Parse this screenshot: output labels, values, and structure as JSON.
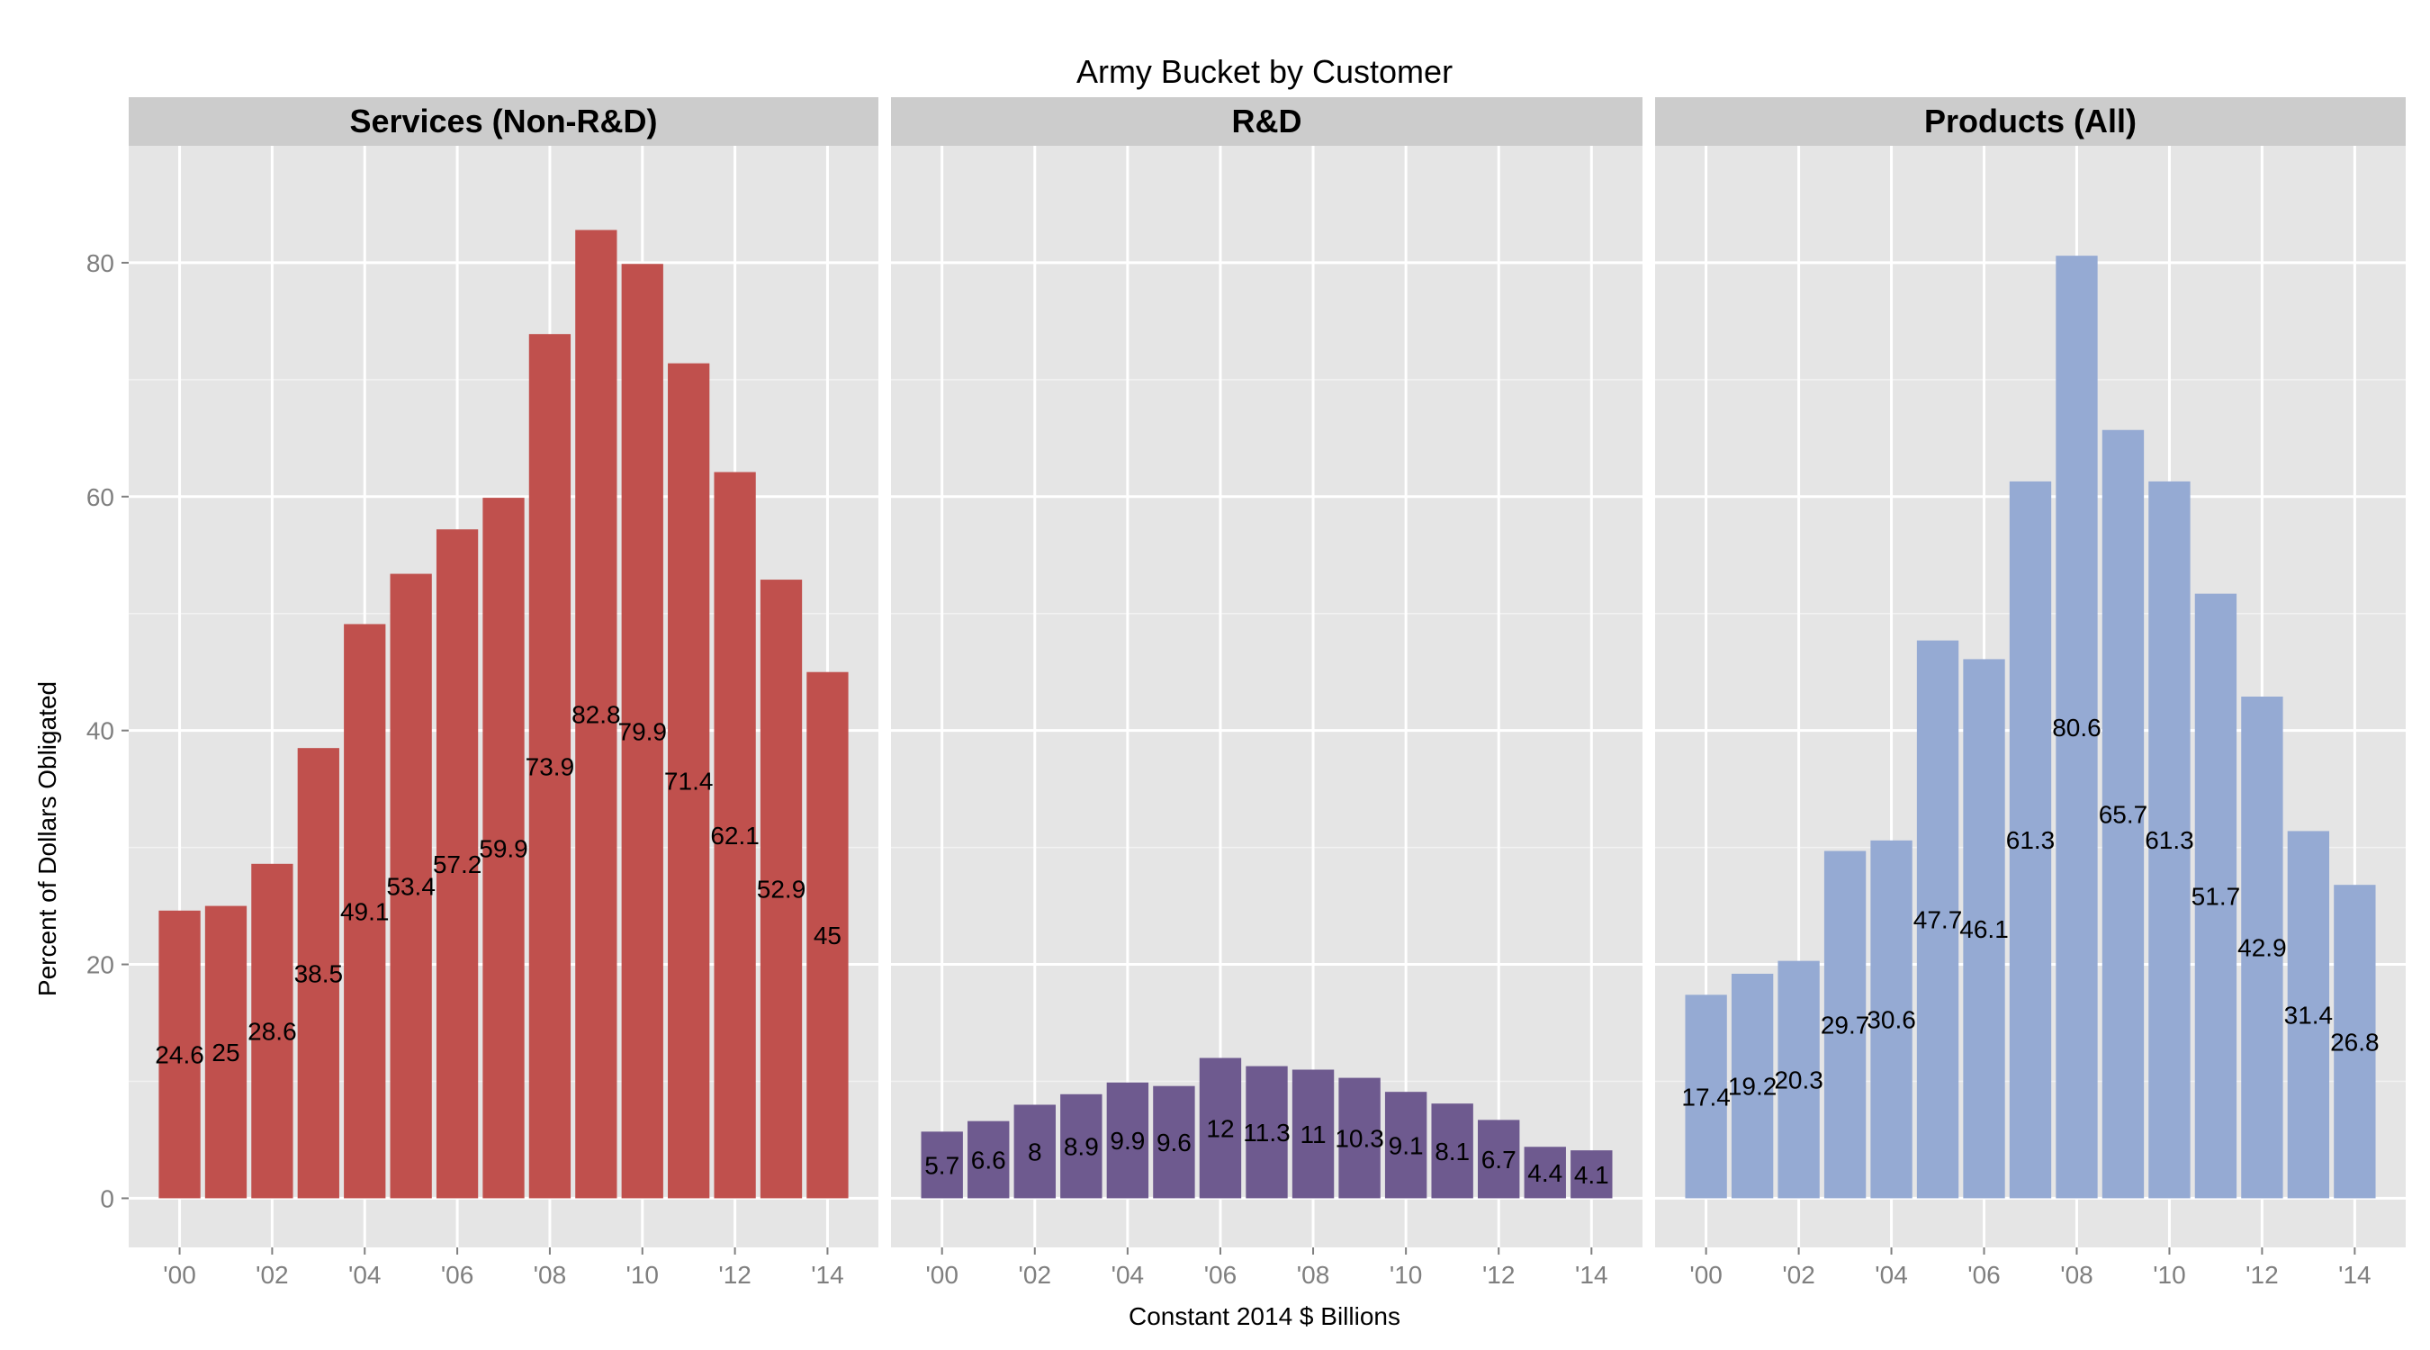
{
  "chart_data": {
    "type": "bar",
    "title": "Army Bucket by Customer",
    "xlabel": "Constant 2014 $ Billions",
    "ylabel": "Percent of Dollars Obligated",
    "ylim": [
      -4.2,
      90
    ],
    "yticks": [
      0,
      20,
      40,
      60,
      80
    ],
    "xticks": [
      "'00",
      "'02",
      "'04",
      "'06",
      "'08",
      "'10",
      "'12",
      "'14"
    ],
    "categories": [
      "2000",
      "2001",
      "2002",
      "2003",
      "2004",
      "2005",
      "2006",
      "2007",
      "2008",
      "2009",
      "2010",
      "2011",
      "2012",
      "2013",
      "2014"
    ],
    "grid": true,
    "legend": "none",
    "series": [
      {
        "name": "Services (Non-R&D)",
        "color": "#c0504d",
        "values": [
          24.6,
          25,
          28.6,
          38.5,
          49.1,
          53.4,
          57.2,
          59.9,
          73.9,
          82.8,
          79.9,
          71.4,
          62.1,
          52.9,
          45
        ],
        "labels": [
          "24.6",
          "25",
          "28.6",
          "38.5",
          "49.1",
          "53.4",
          "57.2",
          "59.9",
          "73.9",
          "82.8",
          "79.9",
          "71.4",
          "62.1",
          "52.9",
          "45"
        ]
      },
      {
        "name": "R&D",
        "color": "#6e5a8f",
        "values": [
          5.7,
          6.6,
          8,
          8.9,
          9.9,
          9.6,
          12,
          11.3,
          11,
          10.3,
          9.1,
          8.1,
          6.7,
          4.4,
          4.1
        ],
        "labels": [
          "5.7",
          "6.6",
          "8",
          "8.9",
          "9.9",
          "9.6",
          "12",
          "11.3",
          "11",
          "10.3",
          "9.1",
          "8.1",
          "6.7",
          "4.4",
          "4.1"
        ]
      },
      {
        "name": "Products (All)",
        "color": "#95aad3",
        "values": [
          17.4,
          19.2,
          20.3,
          29.7,
          30.6,
          47.7,
          46.1,
          61.3,
          80.6,
          65.7,
          61.3,
          51.7,
          42.9,
          31.4,
          26.8
        ],
        "labels": [
          "17.4",
          "19.2",
          "20.3",
          "29.7",
          "30.6",
          "47.7",
          "46.1",
          "61.3",
          "80.6",
          "65.7",
          "61.3",
          "51.7",
          "42.9",
          "31.4",
          "26.8"
        ]
      }
    ]
  }
}
